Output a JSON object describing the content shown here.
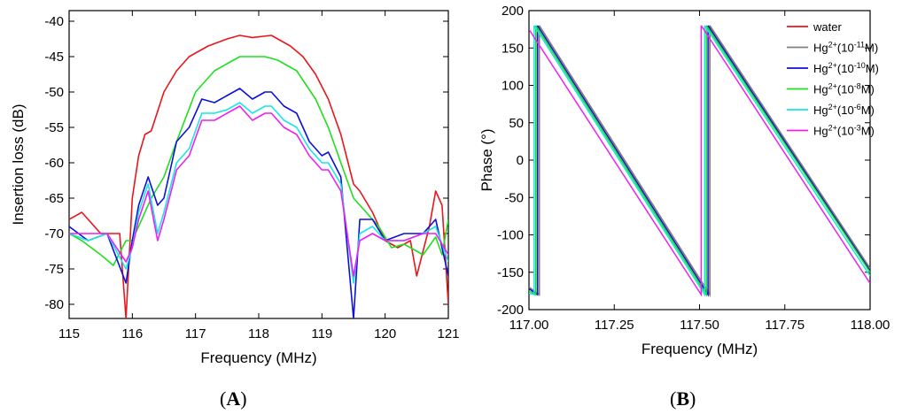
{
  "panels": [
    {
      "label_open": "(",
      "label_letter": "A",
      "label_close": ")"
    },
    {
      "label_open": "(",
      "label_letter": "B",
      "label_close": ")"
    }
  ],
  "chart_data": [
    {
      "type": "line",
      "xlabel": "Frequency (MHz)",
      "ylabel": "Insertion loss (dB)",
      "xlim": [
        115,
        121
      ],
      "ylim": [
        -82,
        -38.5
      ],
      "xticks": [
        115,
        116,
        117,
        118,
        119,
        120,
        121
      ],
      "xtick_labels": [
        "115",
        "116",
        "117",
        "118",
        "119",
        "120",
        "121"
      ],
      "yticks": [
        -80,
        -75,
        -70,
        -65,
        -60,
        -55,
        -50,
        -45,
        -40
      ],
      "ytick_labels": [
        "-80",
        "-75",
        "-70",
        "-65",
        "-60",
        "-55",
        "-50",
        "-45",
        "-40"
      ],
      "grid": false,
      "series": [
        {
          "color": "#e8171b",
          "x": [
            115,
            115.2,
            115.5,
            115.8,
            115.9,
            116.0,
            116.1,
            116.2,
            116.3,
            116.5,
            116.7,
            116.9,
            117.2,
            117.5,
            117.7,
            117.9,
            118.2,
            118.5,
            118.7,
            118.9,
            119.1,
            119.3,
            119.5,
            119.6,
            119.8,
            120.0,
            120.2,
            120.4,
            120.5,
            120.7,
            120.8,
            120.9,
            121.0
          ],
          "y": [
            -68,
            -67,
            -70,
            -70,
            -82,
            -65,
            -59,
            -56,
            -55.5,
            -50,
            -47,
            -45,
            -43.5,
            -42.5,
            -42,
            -42.3,
            -42,
            -43.5,
            -45,
            -47.5,
            -51,
            -56,
            -63,
            -64,
            -67,
            -71,
            -72,
            -71,
            -76,
            -69,
            -64,
            -66,
            -80
          ]
        },
        {
          "color": "#1ee01e",
          "x": [
            115,
            115.2,
            115.5,
            115.7,
            115.9,
            116.0,
            116.2,
            116.3,
            116.5,
            116.7,
            117.0,
            117.3,
            117.5,
            117.7,
            117.9,
            118.1,
            118.3,
            118.6,
            118.9,
            119.1,
            119.3,
            119.5,
            119.7,
            119.9,
            120.1,
            120.3,
            120.6,
            120.8,
            120.9,
            121.0
          ],
          "y": [
            -70,
            -71,
            -73,
            -74.5,
            -71,
            -71,
            -67,
            -65,
            -62,
            -57,
            -50,
            -47,
            -46,
            -45,
            -45,
            -45,
            -45.5,
            -47,
            -51,
            -55,
            -60,
            -65,
            -67,
            -69,
            -72,
            -71.5,
            -73,
            -70.5,
            -73,
            -68
          ]
        },
        {
          "color": "#0c11d8",
          "x": [
            115,
            115.3,
            115.6,
            115.9,
            116.0,
            116.1,
            116.25,
            116.4,
            116.5,
            116.7,
            116.9,
            117.1,
            117.3,
            117.5,
            117.7,
            117.9,
            118.1,
            118.2,
            118.4,
            118.6,
            118.8,
            119.0,
            119.1,
            119.3,
            119.5,
            119.6,
            119.8,
            120.0,
            120.3,
            120.6,
            120.8,
            121.0
          ],
          "y": [
            -69,
            -71,
            -70,
            -77,
            -71,
            -66,
            -62,
            -66,
            -65,
            -57,
            -55,
            -51,
            -51.5,
            -50.5,
            -49.5,
            -51,
            -50,
            -50,
            -52,
            -53,
            -57,
            -59,
            -58.5,
            -62,
            -82,
            -68,
            -68,
            -71,
            -70,
            -70,
            -68,
            -76
          ]
        },
        {
          "color": "#19e6e6",
          "x": [
            115,
            115.3,
            115.6,
            115.9,
            116.0,
            116.1,
            116.25,
            116.4,
            116.5,
            116.7,
            116.9,
            117.1,
            117.3,
            117.5,
            117.7,
            117.9,
            118.1,
            118.2,
            118.4,
            118.6,
            118.8,
            119.0,
            119.1,
            119.3,
            119.5,
            119.6,
            119.8,
            120.0,
            120.3,
            120.6,
            120.8,
            121.0
          ],
          "y": [
            -70,
            -71,
            -70,
            -75,
            -72,
            -67,
            -63,
            -70,
            -67,
            -60,
            -58,
            -53,
            -53,
            -52.5,
            -51.5,
            -53,
            -52,
            -52,
            -54,
            -55,
            -58,
            -60,
            -60,
            -63,
            -77,
            -70,
            -69,
            -71,
            -71,
            -70,
            -69,
            -74
          ]
        },
        {
          "color": "#f01ef0",
          "x": [
            115,
            115.3,
            115.6,
            115.9,
            116.0,
            116.1,
            116.25,
            116.4,
            116.5,
            116.7,
            116.9,
            117.1,
            117.3,
            117.5,
            117.7,
            117.9,
            118.1,
            118.2,
            118.4,
            118.6,
            118.8,
            119.0,
            119.1,
            119.3,
            119.5,
            119.6,
            119.8,
            120.0,
            120.3,
            120.6,
            120.8,
            121.0
          ],
          "y": [
            -70,
            -70,
            -70,
            -74,
            -72,
            -68,
            -64,
            -71,
            -68,
            -61,
            -59,
            -54,
            -54,
            -53,
            -52,
            -54,
            -53,
            -53,
            -55,
            -56,
            -59,
            -61,
            -61,
            -64,
            -76,
            -71,
            -70,
            -71,
            -71,
            -70,
            -70,
            -73
          ]
        }
      ]
    },
    {
      "type": "line",
      "xlabel": "Frequency (MHz)",
      "ylabel": "Phase (°)",
      "xlim": [
        117.0,
        118.0
      ],
      "ylim": [
        -200,
        200
      ],
      "xticks": [
        117.0,
        117.25,
        117.5,
        117.75,
        118.0
      ],
      "xtick_labels": [
        "117.00",
        "117.25",
        "117.50",
        "117.75",
        "118.00"
      ],
      "yticks": [
        -200,
        -150,
        -100,
        -50,
        0,
        50,
        100,
        150,
        200
      ],
      "ytick_labels": [
        "-200",
        "-150",
        "-100",
        "-50",
        "0",
        "50",
        "100",
        "150",
        "200"
      ],
      "grid": false,
      "legend": "top-right",
      "series": [
        {
          "name": "water",
          "color": "#e8171b",
          "segments": [
            [
              [
                117.0,
                -170
              ],
              [
                117.03,
                -180
              ]
            ],
            [
              [
                117.03,
                180
              ],
              [
                117.53,
                -180
              ]
            ],
            [
              [
                117.53,
                180
              ],
              [
                118.0,
                -145
              ]
            ]
          ]
        },
        {
          "name_base": "Hg",
          "name_sup": "2+",
          "name_mid": "(10",
          "name_exp": "-11",
          "name_end": "M)",
          "color": "#7f7f7f",
          "segments": [
            [
              [
                117.0,
                -170
              ],
              [
                117.03,
                -180
              ]
            ],
            [
              [
                117.03,
                180
              ],
              [
                117.53,
                -180
              ]
            ],
            [
              [
                117.53,
                180
              ],
              [
                118.0,
                -145
              ]
            ]
          ]
        },
        {
          "name_base": "Hg",
          "name_sup": "2+",
          "name_mid": "(10",
          "name_exp": "-10",
          "name_end": "M)",
          "color": "#0c11d8",
          "segments": [
            [
              [
                117.0,
                -172
              ],
              [
                117.025,
                -180
              ]
            ],
            [
              [
                117.025,
                180
              ],
              [
                117.525,
                -180
              ]
            ],
            [
              [
                117.525,
                180
              ],
              [
                118.0,
                -148
              ]
            ]
          ]
        },
        {
          "name_base": "Hg",
          "name_sup": "2+",
          "name_mid": "(10",
          "name_exp": "-8",
          "name_end": "M)",
          "color": "#1ee01e",
          "segments": [
            [
              [
                117.0,
                -175
              ],
              [
                117.02,
                -180
              ]
            ],
            [
              [
                117.02,
                180
              ],
              [
                117.52,
                -180
              ]
            ],
            [
              [
                117.52,
                180
              ],
              [
                118.0,
                -150
              ]
            ]
          ]
        },
        {
          "name_base": "Hg",
          "name_sup": "2+",
          "name_mid": "(10",
          "name_exp": "-6",
          "name_end": "M)",
          "color": "#19e6e6",
          "segments": [
            [
              [
                117.0,
                -178
              ],
              [
                117.015,
                -180
              ]
            ],
            [
              [
                117.015,
                180
              ],
              [
                117.515,
                -180
              ]
            ],
            [
              [
                117.515,
                180
              ],
              [
                118.0,
                -155
              ]
            ]
          ]
        },
        {
          "name_base": "Hg",
          "name_sup": "2+",
          "name_mid": "(10",
          "name_exp": "-3",
          "name_end": "M)",
          "color": "#f01ef0",
          "segments": [
            [
              [
                117.0,
                175
              ],
              [
                117.505,
                -180
              ]
            ],
            [
              [
                117.505,
                180
              ],
              [
                118.0,
                -165
              ]
            ]
          ]
        }
      ]
    }
  ]
}
